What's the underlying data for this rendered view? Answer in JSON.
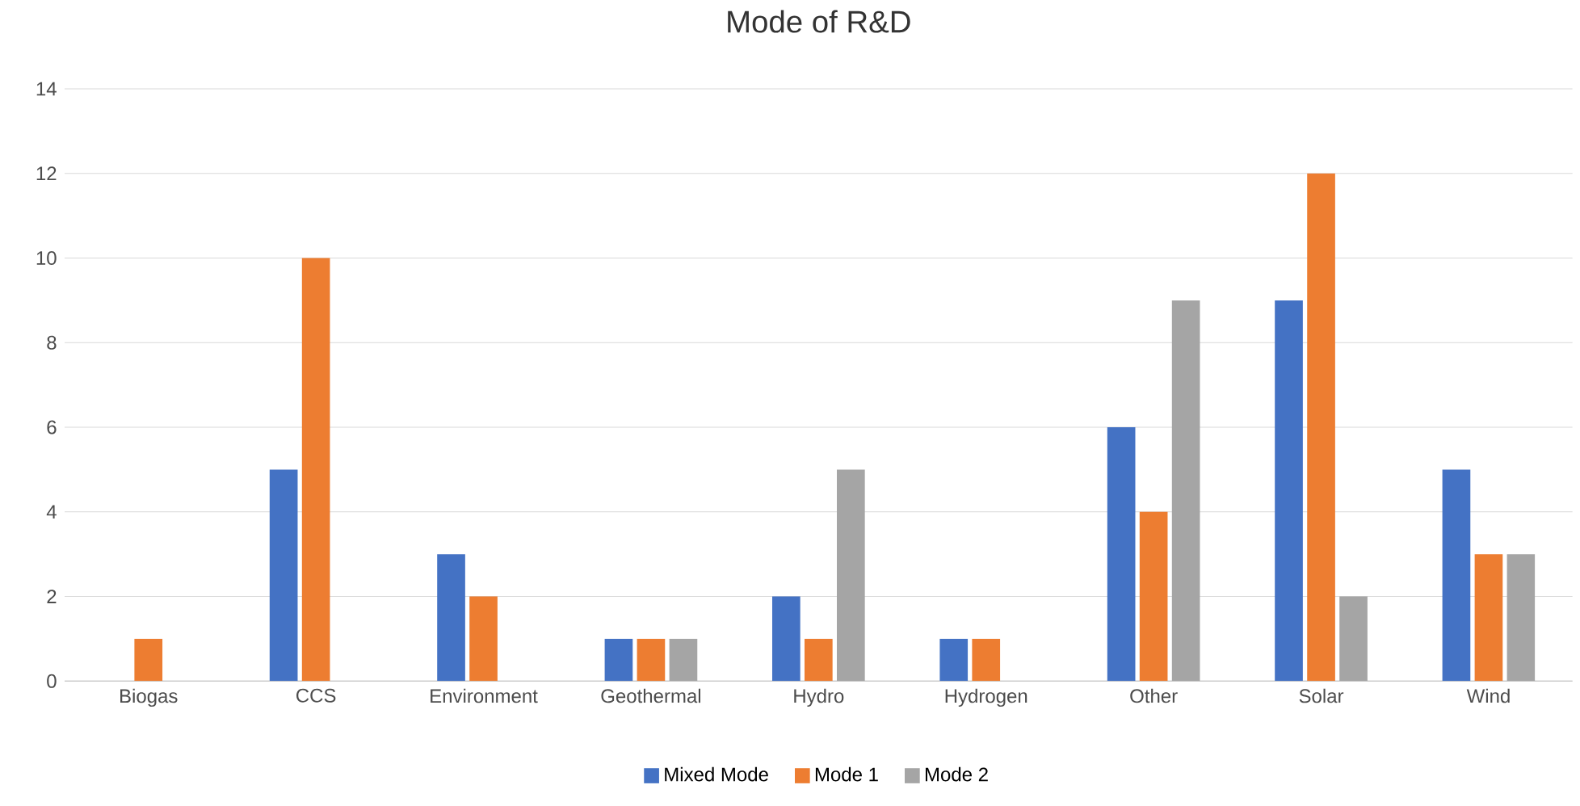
{
  "chart_data": {
    "type": "bar",
    "title": "Mode of R&D",
    "categories": [
      "Biogas",
      "CCS",
      "Environment",
      "Geothermal",
      "Hydro",
      "Hydrogen",
      "Other",
      "Solar",
      "Wind"
    ],
    "series": [
      {
        "name": "Mixed Mode",
        "color": "#4472c4",
        "values": [
          0,
          5,
          3,
          1,
          2,
          1,
          6,
          9,
          5
        ]
      },
      {
        "name": "Mode 1",
        "color": "#ed7d31",
        "values": [
          1,
          10,
          2,
          1,
          1,
          1,
          4,
          12,
          3
        ]
      },
      {
        "name": "Mode 2",
        "color": "#a5a5a5",
        "values": [
          0,
          0,
          0,
          1,
          5,
          0,
          9,
          2,
          3
        ]
      }
    ],
    "ylim": [
      0,
      14
    ],
    "yticks": [
      0,
      2,
      4,
      6,
      8,
      10,
      12,
      14
    ],
    "grid": "y",
    "legend": "bottom"
  }
}
